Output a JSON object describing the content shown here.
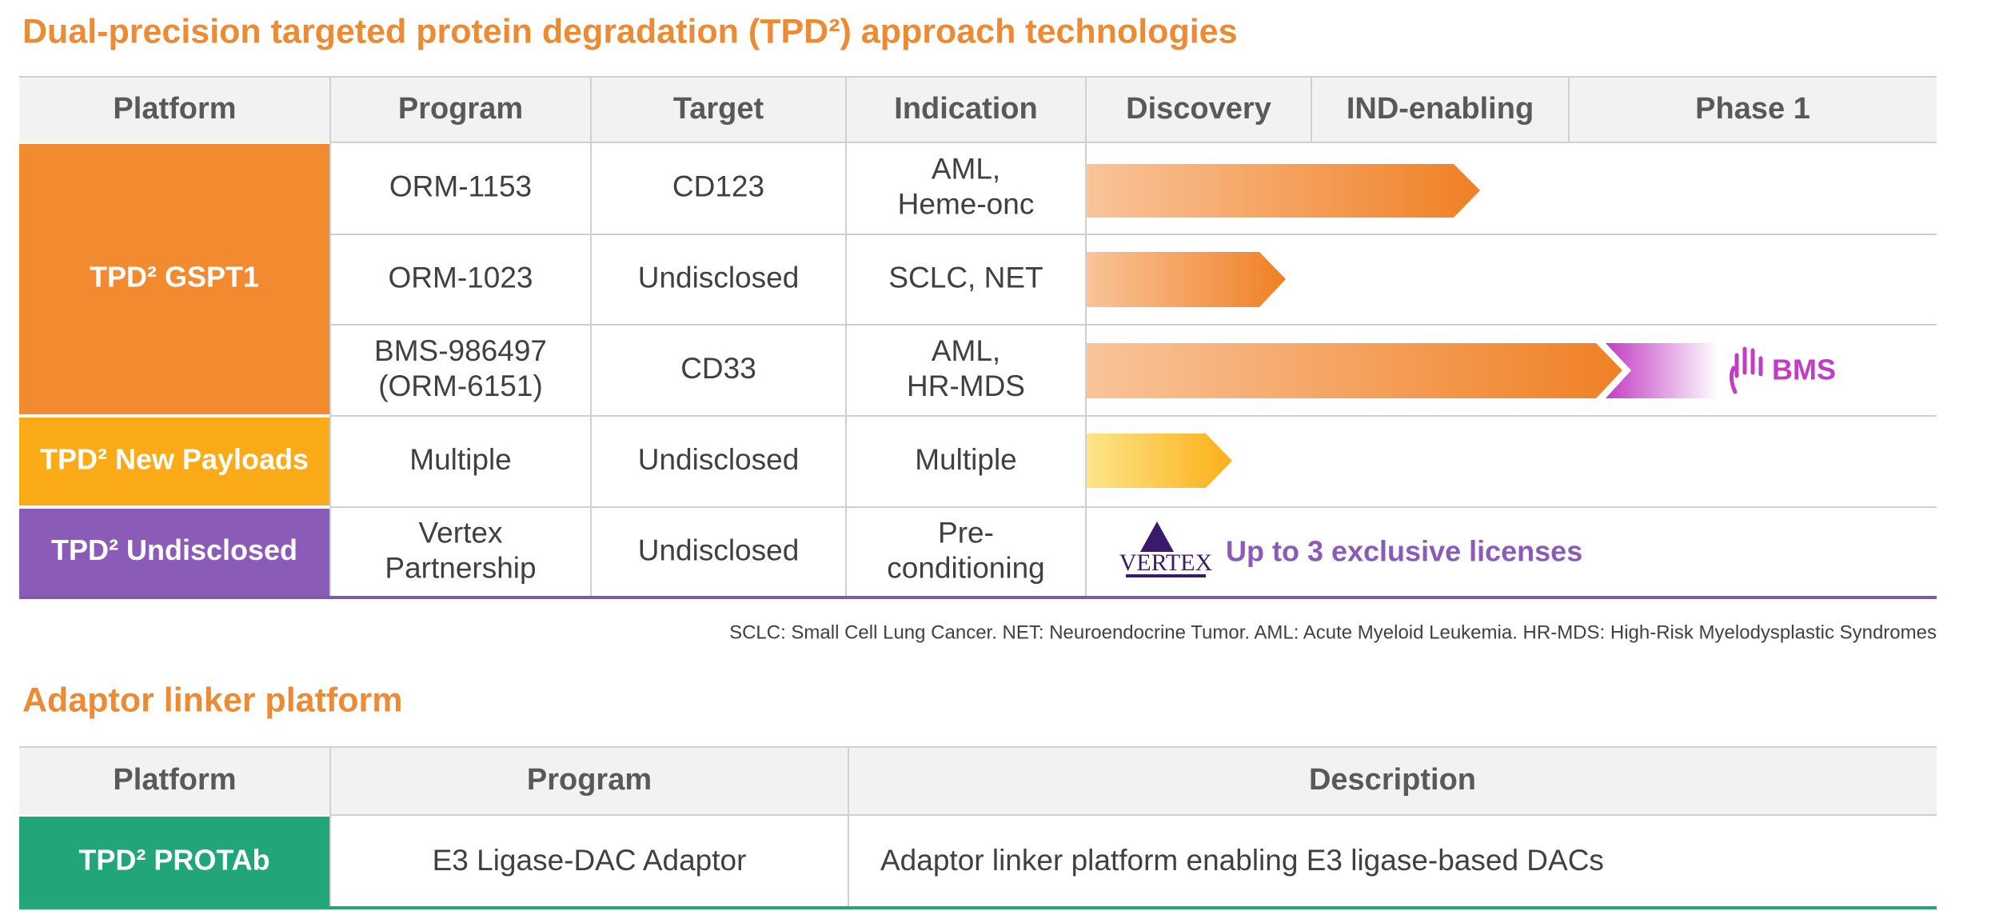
{
  "title": "Dual-precision targeted protein degradation (TPD²) approach technologies",
  "pipeline": {
    "columns": [
      "Platform",
      "Program",
      "Target",
      "Indication",
      "Discovery",
      "IND-enabling",
      "Phase 1"
    ],
    "groups": [
      {
        "platform": "TPD² GSPT1",
        "programs": [
          {
            "program": [
              "ORM-1153"
            ],
            "target": "CD123",
            "indication": [
              "AML,",
              "Heme-onc"
            ]
          },
          {
            "program": [
              "ORM-1023"
            ],
            "target": "Undisclosed",
            "indication": [
              "SCLC, NET"
            ]
          },
          {
            "program": [
              "BMS-986497",
              "(ORM-6151)"
            ],
            "target": "CD33",
            "indication": [
              "AML,",
              "HR-MDS"
            ]
          }
        ]
      },
      {
        "platform": "TPD² New Payloads",
        "programs": [
          {
            "program": [
              "Multiple"
            ],
            "target": "Undisclosed",
            "indication": [
              "Multiple"
            ]
          }
        ]
      },
      {
        "platform": "TPD² Undisclosed",
        "programs": [
          {
            "program": [
              "Vertex",
              "Partnership"
            ],
            "target": "Undisclosed",
            "indication": [
              "Pre-",
              "conditioning"
            ]
          }
        ]
      }
    ],
    "partners": {
      "bms": "BMS",
      "vertex": "VERTEX",
      "vertex_note": "Up to 3 exclusive licenses"
    }
  },
  "footnote": "SCLC: Small Cell Lung Cancer. NET: Neuroendocrine Tumor. AML: Acute Myeloid Leukemia. HR-MDS: High-Risk Myelodysplastic Syndromes",
  "adaptor": {
    "title": "Adaptor linker platform",
    "columns": [
      "Platform",
      "Program",
      "Description"
    ],
    "rows": [
      {
        "platform": "TPD² PROTAb",
        "program": "E3 Ligase-DAC Adaptor",
        "description": "Adaptor linker platform enabling E3 ligase-based DACs"
      }
    ]
  }
}
